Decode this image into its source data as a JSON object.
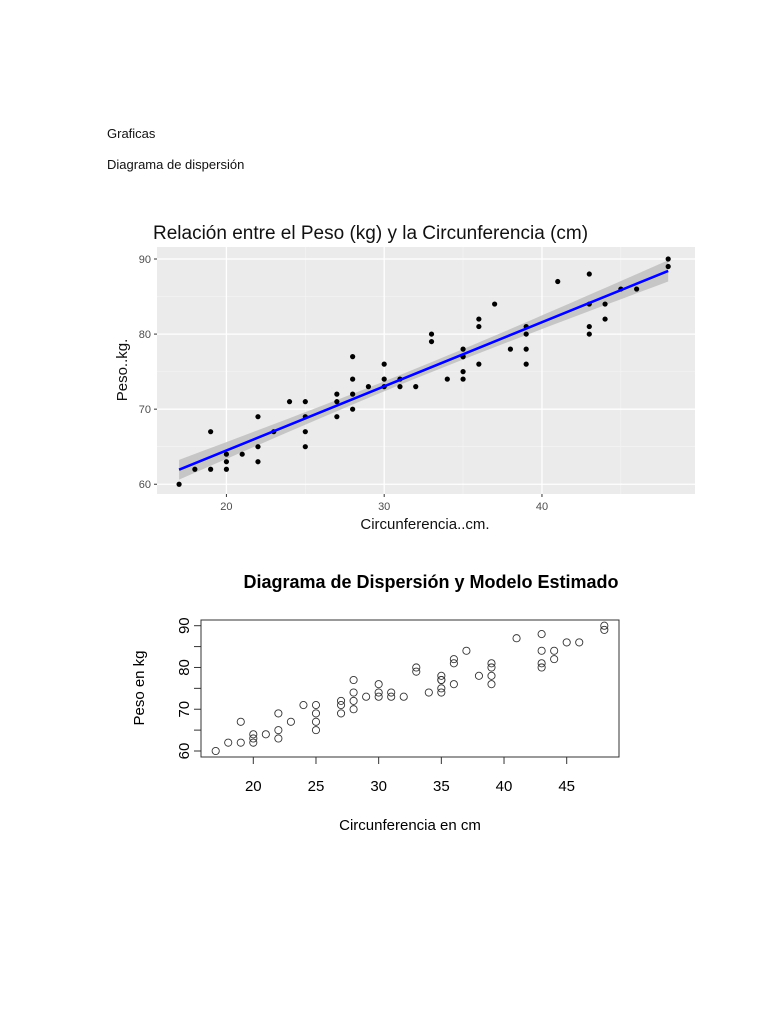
{
  "document": {
    "heading": "Graficas",
    "subheading": "Diagrama de dispersión"
  },
  "chart_data": [
    {
      "type": "scatter",
      "title": "Relación entre el Peso (kg) y la Circunferencia (cm)",
      "xlabel": "Circunferencia..cm.",
      "ylabel": "Peso..kg.",
      "xlim": [
        15.6,
        49.7
      ],
      "ylim": [
        58.7,
        91.6
      ],
      "xticks": [
        "20",
        "30",
        "40"
      ],
      "yticks": [
        "60",
        "70",
        "80",
        "90"
      ],
      "grid": true,
      "smooth": "linear regression with confidence band",
      "colors": {
        "panel": "#ebebeb",
        "grid": "#ffffff",
        "points": "#000000",
        "line": "#0000ff",
        "band": "#bdbdbd"
      },
      "x": [
        17,
        18,
        19,
        19,
        20,
        20,
        20,
        21,
        22,
        22,
        22,
        23,
        24,
        25,
        25,
        25,
        25,
        27,
        27,
        27,
        28,
        28,
        28,
        28,
        29,
        30,
        30,
        30,
        31,
        31,
        32,
        33,
        33,
        34,
        35,
        35,
        35,
        35,
        35,
        36,
        36,
        36,
        37,
        38,
        39,
        39,
        39,
        39,
        41,
        43,
        43,
        43,
        43,
        44,
        44,
        45,
        46,
        48,
        48
      ],
      "y": [
        60,
        62,
        62,
        67,
        62,
        63,
        64,
        64,
        63,
        65,
        69,
        67,
        71,
        65,
        67,
        69,
        71,
        69,
        71,
        72,
        70,
        72,
        74,
        77,
        73,
        73,
        74,
        76,
        73,
        74,
        73,
        79,
        80,
        74,
        74,
        75,
        77,
        78,
        77,
        76,
        81,
        82,
        84,
        78,
        76,
        78,
        80,
        81,
        87,
        80,
        81,
        84,
        88,
        82,
        84,
        86,
        86,
        89,
        90
      ]
    },
    {
      "type": "scatter",
      "title": "Diagrama de Dispersión y Modelo Estimado",
      "xlabel": "Circunferencia en cm",
      "ylabel": "Peso en kg",
      "xlim": [
        15.8,
        49.2
      ],
      "ylim": [
        58.5,
        91.2
      ],
      "xticks": [
        "20",
        "25",
        "30",
        "35",
        "40",
        "45"
      ],
      "yticks": [
        "60",
        "70",
        "80",
        "90"
      ],
      "grid": false,
      "colors": {
        "points": "#000000",
        "box": "#000000"
      },
      "x": [
        17,
        18,
        19,
        19,
        20,
        20,
        20,
        21,
        22,
        22,
        22,
        23,
        24,
        25,
        25,
        25,
        25,
        27,
        27,
        27,
        28,
        28,
        28,
        28,
        29,
        30,
        30,
        30,
        31,
        31,
        32,
        33,
        33,
        34,
        35,
        35,
        35,
        35,
        35,
        36,
        36,
        36,
        37,
        38,
        39,
        39,
        39,
        39,
        41,
        43,
        43,
        43,
        43,
        44,
        44,
        45,
        46,
        48,
        48
      ],
      "y": [
        60,
        62,
        62,
        67,
        62,
        63,
        64,
        64,
        63,
        65,
        69,
        67,
        71,
        65,
        67,
        69,
        71,
        69,
        71,
        72,
        70,
        72,
        74,
        77,
        73,
        73,
        74,
        76,
        73,
        74,
        73,
        79,
        80,
        74,
        74,
        75,
        77,
        78,
        77,
        76,
        81,
        82,
        84,
        78,
        76,
        78,
        80,
        81,
        87,
        80,
        81,
        84,
        88,
        82,
        84,
        86,
        86,
        89,
        90
      ]
    }
  ]
}
